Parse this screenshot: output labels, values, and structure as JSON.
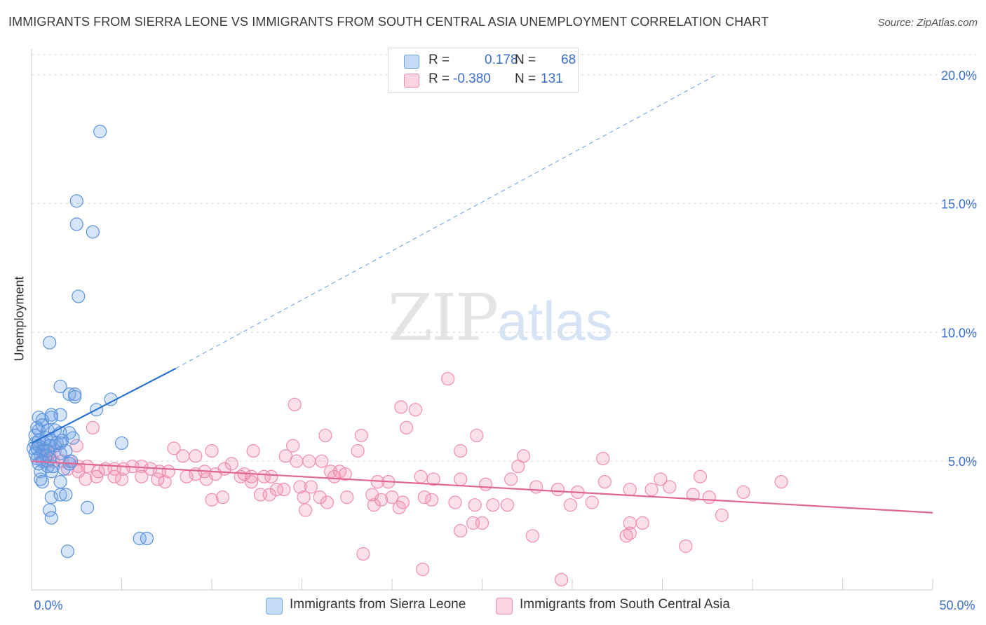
{
  "title": "IMMIGRANTS FROM SIERRA LEONE VS IMMIGRANTS FROM SOUTH CENTRAL ASIA UNEMPLOYMENT CORRELATION CHART",
  "source": "Source: ZipAtlas.com",
  "watermark": {
    "zip": "ZIP",
    "atlas": "atlas"
  },
  "colors": {
    "blue": "#6fa3e6",
    "blue_line": "#2a72d2",
    "pink": "#f08db0",
    "pink_line": "#e06696",
    "axis_text": "#3a6fcf"
  },
  "legend": {
    "rows": [
      {
        "r_label": "R =",
        "r_value": "0.178",
        "n_label": "N =",
        "n_value": "68"
      },
      {
        "r_label": "R =",
        "r_value": "-0.380",
        "n_label": "N =",
        "n_value": "131"
      }
    ]
  },
  "bottom_legend": [
    "Immigrants from Sierra Leone",
    "Immigrants from South Central Asia"
  ],
  "chart_data": {
    "type": "scatter",
    "title": "IMMIGRANTS FROM SIERRA LEONE VS IMMIGRANTS FROM SOUTH CENTRAL ASIA UNEMPLOYMENT CORRELATION CHART",
    "xlabel": "",
    "ylabel": "Unemployment",
    "xlim": [
      0,
      50
    ],
    "ylim": [
      0,
      21
    ],
    "x_ticks": [
      0,
      50
    ],
    "x_tick_labels": [
      "0.0%",
      "50.0%"
    ],
    "y_ticks": [
      5,
      10,
      15,
      20
    ],
    "y_tick_labels": [
      "5.0%",
      "10.0%",
      "15.0%",
      "20.0%"
    ],
    "grid": true,
    "legend_position": "top-center",
    "series": [
      {
        "name": "Immigrants from Sierra Leone",
        "color": "#6fa3e6",
        "trend": {
          "x": [
            0,
            8
          ],
          "y": [
            5.7,
            8.6
          ],
          "extended_x": [
            8,
            38
          ],
          "extended_y": [
            8.6,
            20.0
          ]
        },
        "points": [
          [
            3.8,
            17.8
          ],
          [
            2.5,
            15.1
          ],
          [
            2.5,
            14.2
          ],
          [
            3.4,
            13.9
          ],
          [
            2.6,
            11.4
          ],
          [
            1.0,
            9.6
          ],
          [
            1.6,
            7.9
          ],
          [
            2.1,
            7.6
          ],
          [
            2.4,
            7.6
          ],
          [
            2.4,
            7.5
          ],
          [
            4.4,
            7.4
          ],
          [
            3.6,
            7.0
          ],
          [
            0.4,
            6.7
          ],
          [
            1.1,
            6.8
          ],
          [
            1.6,
            6.8
          ],
          [
            0.6,
            6.6
          ],
          [
            1.1,
            6.7
          ],
          [
            0.3,
            6.3
          ],
          [
            0.4,
            6.2
          ],
          [
            0.6,
            6.4
          ],
          [
            0.9,
            6.2
          ],
          [
            1.3,
            6.2
          ],
          [
            1.6,
            6.1
          ],
          [
            2.1,
            6.1
          ],
          [
            0.2,
            6.0
          ],
          [
            0.4,
            5.8
          ],
          [
            0.8,
            5.9
          ],
          [
            1.1,
            5.8
          ],
          [
            1.4,
            5.7
          ],
          [
            1.7,
            5.8
          ],
          [
            2.3,
            5.9
          ],
          [
            0.2,
            5.7
          ],
          [
            0.4,
            5.6
          ],
          [
            0.7,
            5.7
          ],
          [
            1.0,
            5.6
          ],
          [
            1.3,
            5.6
          ],
          [
            1.6,
            5.7
          ],
          [
            0.1,
            5.5
          ],
          [
            0.3,
            5.5
          ],
          [
            0.6,
            5.4
          ],
          [
            0.9,
            5.4
          ],
          [
            1.9,
            5.4
          ],
          [
            0.2,
            5.3
          ],
          [
            0.5,
            5.2
          ],
          [
            0.8,
            5.2
          ],
          [
            1.6,
            5.3
          ],
          [
            5.0,
            5.7
          ],
          [
            0.3,
            5.1
          ],
          [
            0.6,
            5.0
          ],
          [
            1.0,
            5.1
          ],
          [
            2.2,
            5.0
          ],
          [
            0.4,
            4.9
          ],
          [
            0.9,
            4.8
          ],
          [
            1.2,
            4.8
          ],
          [
            0.5,
            4.6
          ],
          [
            1.1,
            4.6
          ],
          [
            1.8,
            4.7
          ],
          [
            2.1,
            4.9
          ],
          [
            0.5,
            4.3
          ],
          [
            0.6,
            4.2
          ],
          [
            1.6,
            4.2
          ],
          [
            1.1,
            3.6
          ],
          [
            1.6,
            3.7
          ],
          [
            1.9,
            3.7
          ],
          [
            3.1,
            3.2
          ],
          [
            1.0,
            3.1
          ],
          [
            1.1,
            2.8
          ],
          [
            6.0,
            2.0
          ],
          [
            6.4,
            2.0
          ],
          [
            2.0,
            1.5
          ]
        ]
      },
      {
        "name": "Immigrants from South Central Asia",
        "color": "#f08db0",
        "trend": {
          "x": [
            0,
            50
          ],
          "y": [
            5.0,
            3.0
          ]
        },
        "points": [
          [
            23.1,
            8.2
          ],
          [
            14.6,
            7.2
          ],
          [
            20.5,
            7.1
          ],
          [
            21.3,
            7.0
          ],
          [
            3.4,
            6.3
          ],
          [
            16.3,
            6.0
          ],
          [
            20.8,
            6.3
          ],
          [
            18.3,
            6.0
          ],
          [
            24.7,
            6.0
          ],
          [
            2.5,
            5.6
          ],
          [
            7.9,
            5.5
          ],
          [
            10.0,
            5.4
          ],
          [
            12.3,
            5.4
          ],
          [
            14.5,
            5.6
          ],
          [
            18.1,
            5.4
          ],
          [
            23.8,
            5.4
          ],
          [
            27.3,
            5.2
          ],
          [
            31.7,
            5.1
          ],
          [
            0.4,
            5.6
          ],
          [
            0.7,
            5.4
          ],
          [
            1.0,
            5.3
          ],
          [
            1.3,
            5.4
          ],
          [
            0.6,
            5.1
          ],
          [
            0.9,
            5.0
          ],
          [
            1.2,
            5.0
          ],
          [
            1.7,
            5.0
          ],
          [
            2.1,
            5.0
          ],
          [
            2.6,
            4.8
          ],
          [
            3.1,
            4.8
          ],
          [
            3.7,
            4.6
          ],
          [
            4.1,
            4.7
          ],
          [
            4.6,
            4.7
          ],
          [
            5.1,
            4.7
          ],
          [
            5.6,
            4.8
          ],
          [
            6.1,
            4.8
          ],
          [
            6.6,
            4.7
          ],
          [
            7.1,
            4.6
          ],
          [
            7.6,
            4.6
          ],
          [
            8.4,
            5.2
          ],
          [
            9.1,
            5.2
          ],
          [
            9.6,
            4.6
          ],
          [
            10.2,
            4.5
          ],
          [
            10.7,
            4.7
          ],
          [
            11.1,
            4.9
          ],
          [
            11.8,
            4.5
          ],
          [
            12.2,
            4.4
          ],
          [
            12.9,
            4.4
          ],
          [
            13.3,
            4.4
          ],
          [
            14.1,
            5.2
          ],
          [
            14.7,
            5.0
          ],
          [
            15.4,
            5.0
          ],
          [
            16.1,
            5.0
          ],
          [
            16.6,
            4.6
          ],
          [
            17.1,
            4.6
          ],
          [
            2.0,
            4.7
          ],
          [
            2.6,
            4.6
          ],
          [
            3.0,
            4.3
          ],
          [
            3.6,
            4.4
          ],
          [
            4.6,
            4.4
          ],
          [
            5.0,
            4.3
          ],
          [
            6.1,
            4.4
          ],
          [
            7.0,
            4.3
          ],
          [
            7.4,
            4.2
          ],
          [
            8.6,
            4.4
          ],
          [
            9.1,
            4.5
          ],
          [
            9.7,
            4.3
          ],
          [
            11.6,
            4.4
          ],
          [
            12.2,
            4.2
          ],
          [
            13.6,
            3.9
          ],
          [
            14.0,
            3.9
          ],
          [
            14.9,
            4.0
          ],
          [
            15.5,
            4.0
          ],
          [
            16.8,
            4.4
          ],
          [
            17.4,
            4.5
          ],
          [
            19.2,
            4.2
          ],
          [
            19.8,
            4.2
          ],
          [
            21.6,
            4.4
          ],
          [
            23.8,
            4.3
          ],
          [
            25.2,
            4.1
          ],
          [
            27.0,
            4.8
          ],
          [
            28.0,
            4.0
          ],
          [
            29.2,
            3.9
          ],
          [
            30.3,
            3.8
          ],
          [
            33.2,
            3.9
          ],
          [
            34.9,
            4.3
          ],
          [
            37.1,
            4.4
          ],
          [
            35.4,
            4.0
          ],
          [
            37.6,
            3.6
          ],
          [
            39.5,
            3.8
          ],
          [
            41.6,
            4.2
          ],
          [
            12.7,
            3.7
          ],
          [
            13.2,
            3.7
          ],
          [
            15.1,
            3.6
          ],
          [
            16.0,
            3.6
          ],
          [
            17.5,
            3.6
          ],
          [
            18.9,
            3.7
          ],
          [
            19.4,
            3.5
          ],
          [
            20.0,
            3.6
          ],
          [
            20.6,
            3.4
          ],
          [
            21.8,
            3.6
          ],
          [
            22.2,
            3.5
          ],
          [
            23.5,
            3.4
          ],
          [
            24.6,
            3.3
          ],
          [
            25.6,
            3.3
          ],
          [
            26.4,
            3.3
          ],
          [
            29.9,
            3.3
          ],
          [
            31.1,
            3.4
          ],
          [
            10.0,
            3.5
          ],
          [
            10.6,
            3.6
          ],
          [
            16.4,
            3.4
          ],
          [
            19.0,
            3.3
          ],
          [
            15.2,
            3.1
          ],
          [
            20.4,
            3.2
          ],
          [
            36.7,
            3.7
          ],
          [
            24.5,
            2.6
          ],
          [
            25.0,
            2.6
          ],
          [
            33.2,
            2.6
          ],
          [
            33.9,
            2.6
          ],
          [
            38.3,
            2.9
          ],
          [
            23.8,
            2.3
          ],
          [
            27.8,
            2.1
          ],
          [
            33.0,
            2.1
          ],
          [
            33.2,
            2.2
          ],
          [
            36.3,
            1.7
          ],
          [
            18.4,
            1.4
          ],
          [
            21.7,
            0.8
          ],
          [
            29.4,
            0.4
          ],
          [
            22.3,
            4.3
          ],
          [
            26.6,
            4.3
          ],
          [
            31.8,
            4.2
          ],
          [
            34.4,
            3.9
          ]
        ]
      }
    ]
  }
}
